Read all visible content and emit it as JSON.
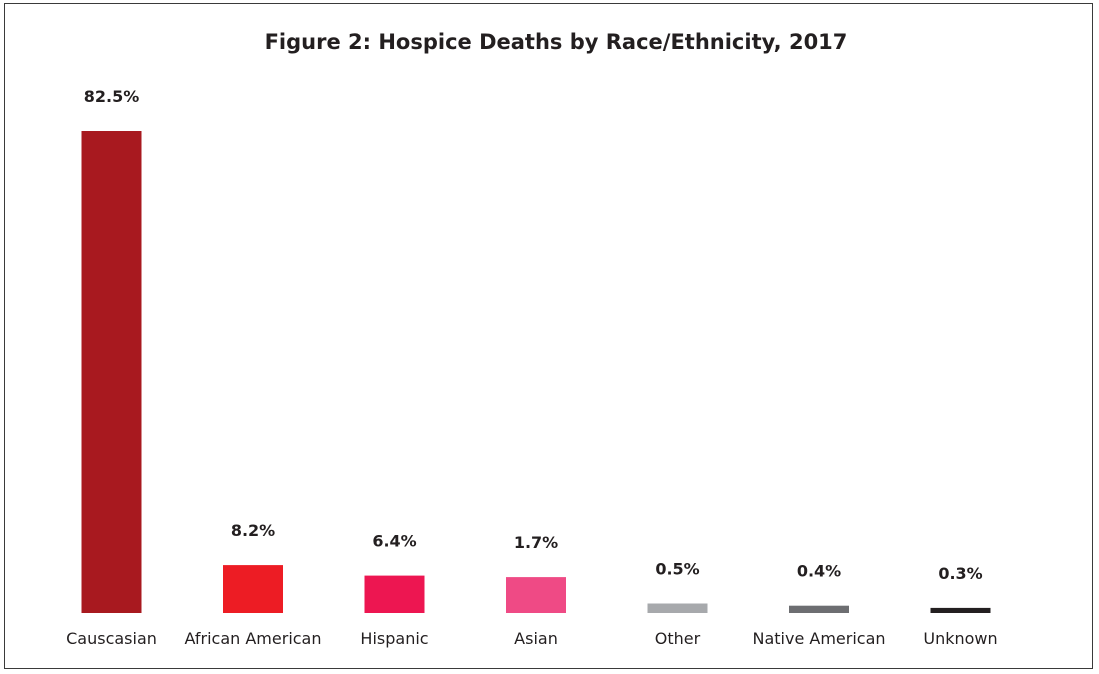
{
  "chart_data": {
    "type": "bar",
    "title": "Figure 2: Hospice Deaths by Race/Ethnicity, 2017",
    "xlabel": "",
    "ylabel": "",
    "ylim": [
      0,
      82.5
    ],
    "grid": false,
    "legend": "none",
    "unit": "%",
    "categories": [
      "Causcasian",
      "African American",
      "Hispanic",
      "Asian",
      "Other",
      "Native American",
      "Unknown"
    ],
    "values": [
      82.5,
      8.2,
      6.4,
      1.7,
      0.5,
      0.4,
      0.3
    ],
    "value_labels": [
      "82.5%",
      "8.2%",
      "6.4%",
      "1.7%",
      "0.5%",
      "0.4%",
      "0.3%"
    ],
    "colors": [
      "#a8191f",
      "#ed1c24",
      "#ed1651",
      "#ef4a85",
      "#a7a9ac",
      "#6d6e71",
      "#231f20"
    ]
  }
}
